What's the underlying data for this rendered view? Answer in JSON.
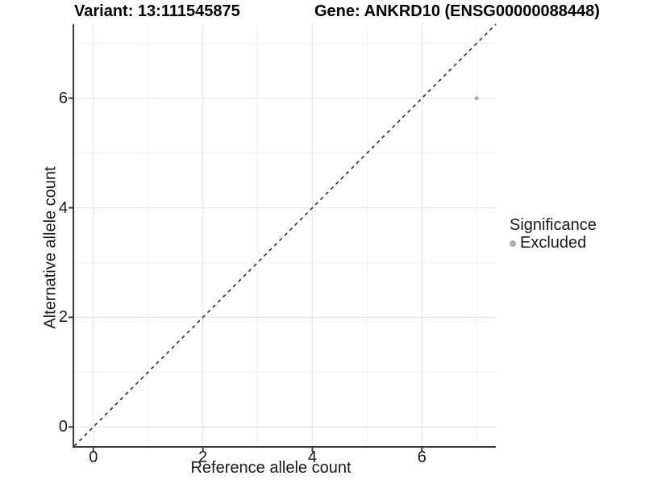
{
  "header": {
    "variant_title": "Variant: 13:111545875",
    "gene_title": "Gene: ANKRD10 (ENSG00000088448)"
  },
  "chart_data": {
    "type": "scatter",
    "x": {
      "label": "Reference allele count",
      "range": [
        -0.35,
        7.35
      ],
      "major_ticks": [
        0,
        2,
        4,
        6
      ],
      "minor_ticks": [
        1,
        3,
        5,
        7
      ]
    },
    "y": {
      "label": "Alternative allele count",
      "range": [
        -0.35,
        7.35
      ],
      "major_ticks": [
        0,
        2,
        4,
        6
      ],
      "minor_ticks": [
        1,
        3,
        5,
        7
      ]
    },
    "series": [
      {
        "name": "Excluded",
        "color": "#b0b0b0",
        "point_radius": 2.6,
        "points": [
          {
            "x": 7,
            "y": 6
          }
        ]
      }
    ],
    "reference_line": {
      "type": "identity y=x",
      "style": "dashed",
      "color": "#141414",
      "from": [
        -0.35,
        -0.35
      ],
      "to": [
        7.35,
        7.35
      ]
    },
    "legend": {
      "title": "Significance",
      "position": "right"
    },
    "grid": {
      "major_color": "#e6e6e6",
      "minor_color": "#f2f2f2",
      "background": "#ffffff"
    },
    "axis": {
      "line_color": "#3c3c3c",
      "tick_color": "#3c3c3c",
      "text_color": "#1a1a1a"
    }
  }
}
